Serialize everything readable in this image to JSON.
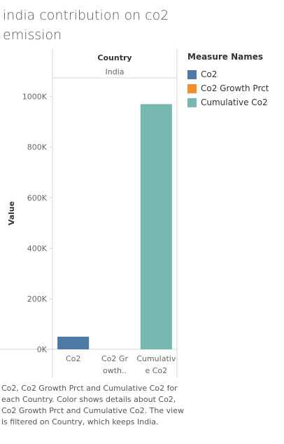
{
  "page": {
    "title": "india contribution on co2 emission",
    "caption": "Co2, Co2 Growth Prct and Cumulative Co2 for each Country.  Color shows details about Co2, Co2 Growth Prct and Cumulative Co2. The view is filtered on Country, which keeps India."
  },
  "legend": {
    "title": "Measure Names",
    "items": [
      {
        "label": "Co2",
        "color": "#4e79a7"
      },
      {
        "label": "Co2 Growth Prct",
        "color": "#f28e2b"
      },
      {
        "label": "Cumulative Co2",
        "color": "#76b7b2"
      }
    ]
  },
  "chart_data": {
    "type": "bar",
    "column_header_title": "Country",
    "column_header_value": "India",
    "categories": [
      "Co2",
      "Co2 Gr owth..",
      "Cumulativ e Co2"
    ],
    "category_lines": [
      [
        "Co2"
      ],
      [
        "Co2 Gr",
        "owth.."
      ],
      [
        "Cumulativ",
        "e Co2"
      ]
    ],
    "values": [
      50000,
      0,
      970000
    ],
    "colors": [
      "#4e79a7",
      "#f28e2b",
      "#76b7b2"
    ],
    "ylabel": "Value",
    "ylim": [
      0,
      1060000
    ],
    "yticks": [
      0,
      200000,
      400000,
      600000,
      800000,
      1000000
    ],
    "ytick_labels": [
      "0K",
      "200K",
      "400K",
      "600K",
      "800K",
      "1000K"
    ],
    "grid": false,
    "legend_position": "right"
  }
}
